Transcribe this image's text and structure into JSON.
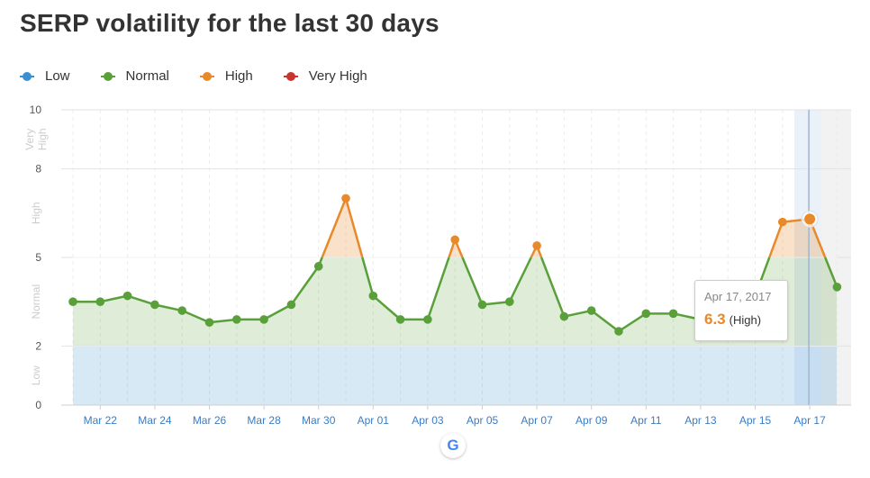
{
  "title": "SERP volatility for the last 30 days",
  "legend": [
    {
      "label": "Low",
      "color": "#3a8fd0"
    },
    {
      "label": "Normal",
      "color": "#5aa03a"
    },
    {
      "label": "High",
      "color": "#e8892a"
    },
    {
      "label": "Very High",
      "color": "#c8352e"
    }
  ],
  "tooltip": {
    "date": "Apr 17, 2017",
    "value": "6.3",
    "level": "(High)"
  },
  "google_icon": "G",
  "chart_data": {
    "type": "line",
    "title": "SERP volatility for the last 30 days",
    "x": [
      "Mar 21",
      "Mar 22",
      "Mar 23",
      "Mar 24",
      "Mar 25",
      "Mar 26",
      "Mar 27",
      "Mar 28",
      "Mar 29",
      "Mar 30",
      "Mar 31",
      "Apr 01",
      "Apr 02",
      "Apr 03",
      "Apr 04",
      "Apr 05",
      "Apr 06",
      "Apr 07",
      "Apr 08",
      "Apr 09",
      "Apr 10",
      "Apr 11",
      "Apr 12",
      "Apr 13",
      "Apr 14",
      "Apr 15",
      "Apr 16",
      "Apr 17",
      "Apr 18"
    ],
    "y": [
      3.5,
      3.5,
      3.7,
      3.4,
      3.2,
      2.8,
      2.9,
      2.9,
      3.4,
      4.7,
      7.0,
      3.7,
      2.9,
      2.9,
      5.6,
      3.4,
      3.5,
      5.4,
      3.0,
      3.2,
      2.5,
      3.1,
      3.1,
      2.9,
      2.9,
      3.7,
      6.2,
      6.3,
      4.0
    ],
    "xtick_labels": [
      "Mar 22",
      "Mar 24",
      "Mar 26",
      "Mar 28",
      "Mar 30",
      "Apr 01",
      "Apr 03",
      "Apr 05",
      "Apr 07",
      "Apr 09",
      "Apr 11",
      "Apr 13",
      "Apr 15",
      "Apr 17"
    ],
    "ytick_labels": [
      "0",
      "2",
      "5",
      "8",
      "10"
    ],
    "ylim": [
      0,
      10
    ],
    "bands": [
      {
        "label": "Low",
        "from": 0,
        "to": 2
      },
      {
        "label": "Normal",
        "from": 2,
        "to": 5
      },
      {
        "label": "High",
        "from": 5,
        "to": 8
      },
      {
        "label": "Very High",
        "from": 8,
        "to": 10
      }
    ],
    "highlighted_point": "Apr 17",
    "grid": true
  }
}
